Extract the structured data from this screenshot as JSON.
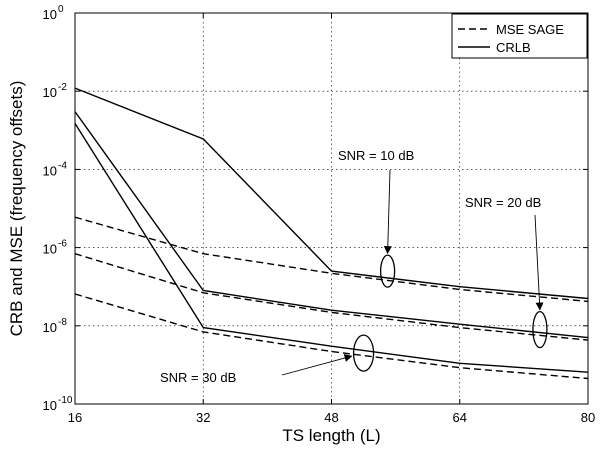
{
  "chart_data": {
    "type": "line",
    "x_label": "TS length (L)",
    "y_label": "CRB and MSE (frequency offsets)",
    "x_ticks": [
      "16",
      "32",
      "48",
      "64",
      "80"
    ],
    "x_range": [
      16,
      80
    ],
    "y_scale": "log",
    "y_range": [
      1e-10,
      1
    ],
    "y_tick_exponents": [
      0,
      -2,
      -4,
      -6,
      -8,
      -10
    ],
    "grid": true,
    "legend_position": "top-right",
    "legend": [
      {
        "label": "MSE SAGE",
        "style": "dashed"
      },
      {
        "label": "CRLB",
        "style": "solid"
      }
    ],
    "series": [
      {
        "group": "SNR = 10 dB",
        "style": "solid",
        "x": [
          16,
          32,
          48,
          64,
          80
        ],
        "y": [
          0.012,
          0.0006,
          2.5e-07,
          1e-07,
          5e-08
        ]
      },
      {
        "group": "SNR = 10 dB",
        "style": "dashed",
        "x": [
          16,
          32,
          48,
          64,
          80
        ],
        "y": [
          6e-06,
          7e-07,
          2.2e-07,
          8.5e-08,
          4.2e-08
        ]
      },
      {
        "group": "SNR = 20 dB",
        "style": "solid",
        "x": [
          16,
          32,
          48,
          64,
          80
        ],
        "y": [
          0.003,
          8e-08,
          2.5e-08,
          1.1e-08,
          5e-09
        ]
      },
      {
        "group": "SNR = 20 dB",
        "style": "dashed",
        "x": [
          16,
          32,
          48,
          64,
          80
        ],
        "y": [
          7e-07,
          7e-08,
          2.2e-08,
          9e-09,
          4.3e-09
        ]
      },
      {
        "group": "SNR = 30 dB",
        "style": "solid",
        "x": [
          16,
          32,
          48,
          64,
          80
        ],
        "y": [
          0.0015,
          9e-09,
          3e-09,
          1.1e-09,
          6.5e-10
        ]
      },
      {
        "group": "SNR = 30 dB",
        "style": "dashed",
        "x": [
          16,
          32,
          48,
          64,
          80
        ],
        "y": [
          6.5e-08,
          7e-09,
          2.2e-09,
          8.5e-10,
          4.5e-10
        ]
      }
    ],
    "annotations": [
      {
        "text": "SNR = 10 dB",
        "target_x": 55,
        "target_y": 2.5e-07
      },
      {
        "text": "SNR = 20 dB",
        "target_x": 74,
        "target_y": 8e-09
      },
      {
        "text": "SNR = 30 dB",
        "target_x": 52,
        "target_y": 2e-09
      }
    ]
  }
}
